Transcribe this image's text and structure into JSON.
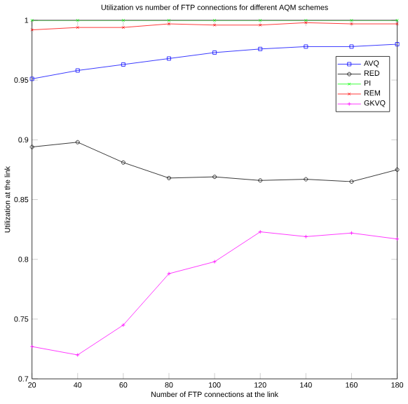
{
  "chart_data": {
    "type": "line",
    "title": "Utilization vs number of FTP connections for different AQM schemes",
    "xlabel": "Number of FTP connections at the link",
    "ylabel": "Utilization at the link",
    "x": [
      20,
      40,
      60,
      80,
      100,
      120,
      140,
      160,
      180
    ],
    "series": [
      {
        "name": "AVQ",
        "color": "#0000ff",
        "marker": "square",
        "values": [
          0.951,
          0.958,
          0.963,
          0.968,
          0.973,
          0.976,
          0.978,
          0.978,
          0.98
        ]
      },
      {
        "name": "RED",
        "color": "#000000",
        "marker": "circle",
        "values": [
          0.894,
          0.898,
          0.881,
          0.868,
          0.869,
          0.866,
          0.867,
          0.865,
          0.875
        ]
      },
      {
        "name": "PI",
        "color": "#00ff00",
        "marker": "cross",
        "values": [
          1,
          1,
          1,
          1,
          1,
          1,
          1,
          1,
          1
        ]
      },
      {
        "name": "REM",
        "color": "#ff0000",
        "marker": "cross",
        "values": [
          0.992,
          0.994,
          0.994,
          0.997,
          0.996,
          0.996,
          0.998,
          0.997,
          0.997
        ]
      },
      {
        "name": "GKVQ",
        "color": "#ff00ff",
        "marker": "plus",
        "values": [
          0.727,
          0.72,
          0.745,
          0.788,
          0.798,
          0.823,
          0.819,
          0.822,
          0.817
        ]
      }
    ],
    "xlim": [
      20,
      180
    ],
    "ylim": [
      0.7,
      1
    ],
    "xticks": [
      20,
      40,
      60,
      80,
      100,
      120,
      140,
      160,
      180
    ],
    "yticks": [
      0.7,
      0.75,
      0.8,
      0.85,
      0.9,
      0.95,
      1
    ],
    "grid": false,
    "legend": "top right",
    "line_style": "solid"
  }
}
